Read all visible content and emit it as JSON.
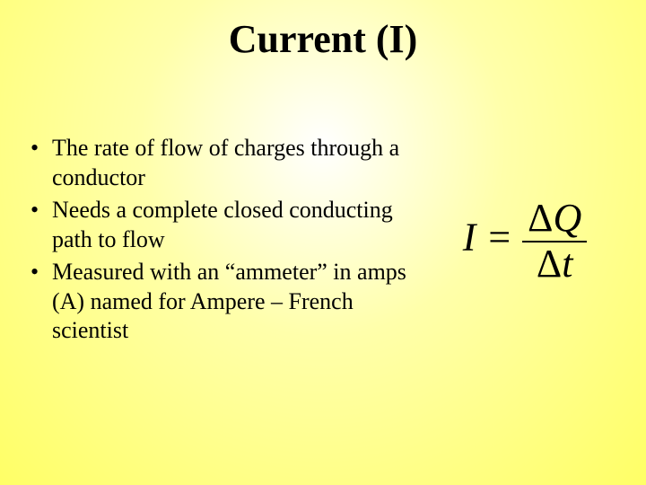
{
  "title": "Current (I)",
  "bullets": [
    "The rate of flow of charges through a conductor",
    "Needs a complete closed conducting path to flow",
    "Measured with an “ammeter” in amps (A) named for Ampere – French scientist"
  ],
  "formula": {
    "lhs": "I",
    "eq": " = ",
    "numerator_delta": "Δ",
    "numerator_var": "Q",
    "denominator_delta": "Δ",
    "denominator_var": "t"
  },
  "styling": {
    "background_center": "#ffffff",
    "background_mid": "#ffffaa",
    "background_edge": "#ffff66",
    "text_color": "#000000",
    "title_fontsize": 44,
    "body_fontsize": 26,
    "formula_fontsize": 44,
    "font_family": "Times New Roman"
  }
}
